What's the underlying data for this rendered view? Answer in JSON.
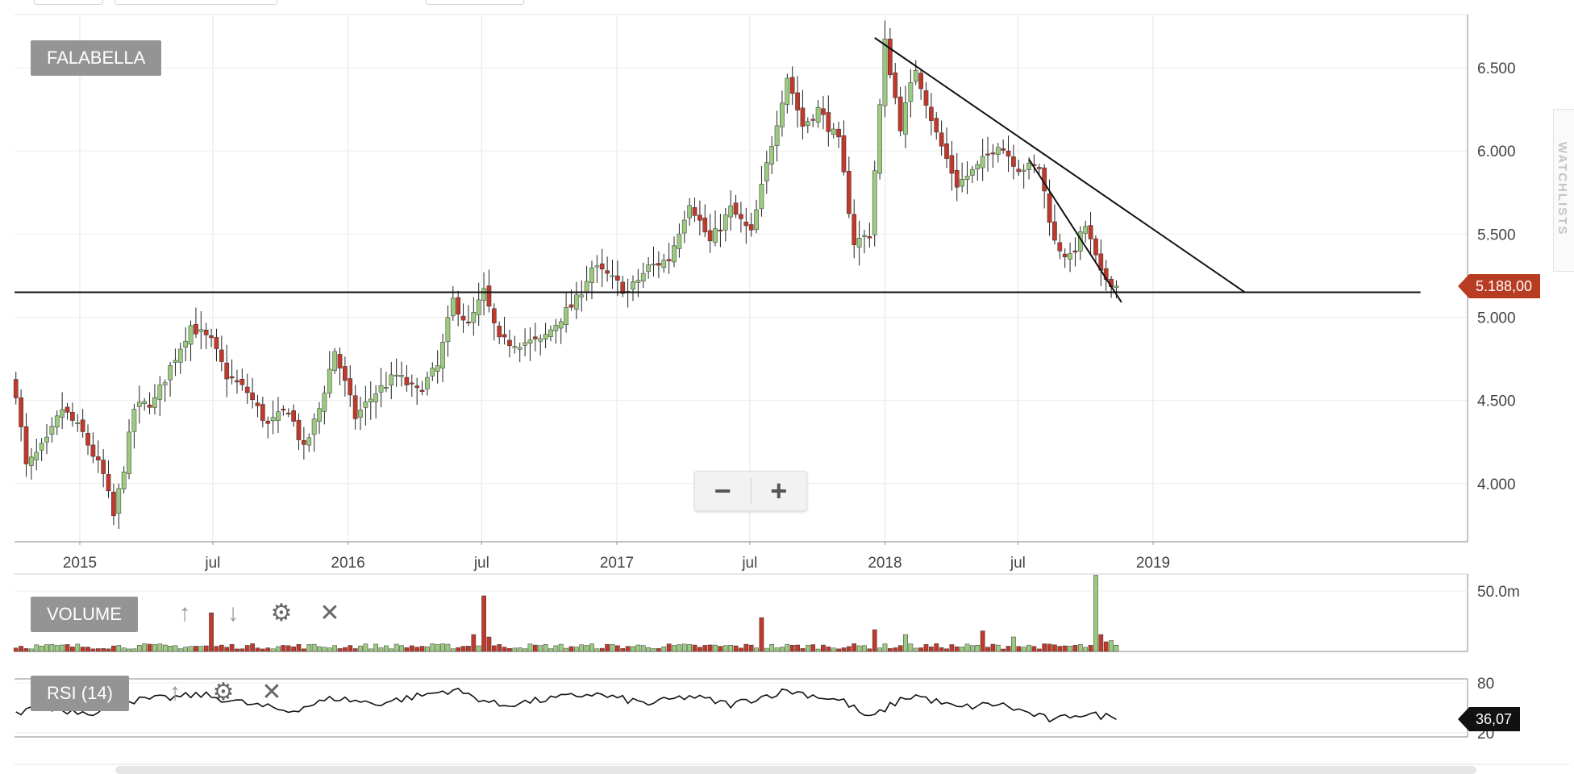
{
  "symbol": "FALABELLA",
  "last_price_label": "5.188,00",
  "rsi_value_label": "36,07",
  "colors": {
    "up": "#9bcb7f",
    "down": "#c0392b",
    "price_tag": "#b83c22",
    "rsi_tag": "#111111",
    "label_bg": "#949494"
  },
  "panels": {
    "volume": {
      "label": "VOLUME",
      "tools": [
        "arrow-up-icon",
        "arrow-down-icon",
        "gear-icon",
        "close-icon"
      ]
    },
    "rsi": {
      "label": "RSI (14)",
      "tools": [
        "arrow-up-icon",
        "gear-icon",
        "close-icon"
      ]
    }
  },
  "side_tab_label": "WATCHLISTS",
  "zoom": {
    "minus_icon": "minus-icon",
    "plus_icon": "plus-icon"
  },
  "chart_data": [
    {
      "type": "candlestick",
      "title": "FALABELLA",
      "x_tick_labels": [
        "2015",
        "jul",
        "2016",
        "jul",
        "2017",
        "jul",
        "2018",
        "jul",
        "2019"
      ],
      "x_tick_dates": [
        "2015-01-01",
        "2015-07-01",
        "2016-01-01",
        "2016-07-01",
        "2017-01-01",
        "2017-07-01",
        "2018-01-01",
        "2018-07-01",
        "2019-01-01"
      ],
      "y_tick_labels": [
        "4.000",
        "4.500",
        "5.000",
        "5.500",
        "6.000",
        "6.500"
      ],
      "y_ticks": [
        4000,
        4500,
        5000,
        5500,
        6000,
        6500
      ],
      "ylim": [
        3650,
        6820
      ],
      "grid": true,
      "close_anchors": [
        {
          "date": "2014-10-06",
          "close": 4550
        },
        {
          "date": "2014-10-20",
          "close": 4100
        },
        {
          "date": "2014-11-17",
          "close": 4250
        },
        {
          "date": "2014-12-08",
          "close": 4450
        },
        {
          "date": "2015-01-05",
          "close": 4300
        },
        {
          "date": "2015-02-02",
          "close": 4050
        },
        {
          "date": "2015-02-16",
          "close": 3800
        },
        {
          "date": "2015-03-02",
          "close": 4100
        },
        {
          "date": "2015-03-16",
          "close": 4450
        },
        {
          "date": "2015-04-13",
          "close": 4500
        },
        {
          "date": "2015-05-04",
          "close": 4700
        },
        {
          "date": "2015-06-01",
          "close": 4950
        },
        {
          "date": "2015-06-29",
          "close": 4850
        },
        {
          "date": "2015-07-20",
          "close": 4650
        },
        {
          "date": "2015-08-17",
          "close": 4550
        },
        {
          "date": "2015-09-14",
          "close": 4350
        },
        {
          "date": "2015-10-12",
          "close": 4450
        },
        {
          "date": "2015-11-02",
          "close": 4200
        },
        {
          "date": "2015-11-23",
          "close": 4450
        },
        {
          "date": "2015-12-14",
          "close": 4800
        },
        {
          "date": "2016-01-11",
          "close": 4400
        },
        {
          "date": "2016-02-08",
          "close": 4550
        },
        {
          "date": "2016-03-07",
          "close": 4650
        },
        {
          "date": "2016-04-04",
          "close": 4550
        },
        {
          "date": "2016-05-02",
          "close": 4700
        },
        {
          "date": "2016-05-23",
          "close": 5100
        },
        {
          "date": "2016-06-13",
          "close": 4950
        },
        {
          "date": "2016-07-04",
          "close": 5150
        },
        {
          "date": "2016-07-25",
          "close": 4850
        },
        {
          "date": "2016-08-22",
          "close": 4850
        },
        {
          "date": "2016-09-19",
          "close": 4850
        },
        {
          "date": "2016-10-17",
          "close": 5000
        },
        {
          "date": "2016-11-07",
          "close": 5100
        },
        {
          "date": "2016-11-28",
          "close": 5300
        },
        {
          "date": "2016-12-19",
          "close": 5250
        },
        {
          "date": "2017-01-16",
          "close": 5150
        },
        {
          "date": "2017-02-13",
          "close": 5300
        },
        {
          "date": "2017-03-13",
          "close": 5350
        },
        {
          "date": "2017-04-10",
          "close": 5700
        },
        {
          "date": "2017-05-08",
          "close": 5450
        },
        {
          "date": "2017-06-05",
          "close": 5650
        },
        {
          "date": "2017-07-03",
          "close": 5500
        },
        {
          "date": "2017-07-31",
          "close": 6050
        },
        {
          "date": "2017-08-21",
          "close": 6450
        },
        {
          "date": "2017-09-11",
          "close": 6150
        },
        {
          "date": "2017-10-02",
          "close": 6250
        },
        {
          "date": "2017-10-30",
          "close": 6050
        },
        {
          "date": "2017-11-20",
          "close": 5450
        },
        {
          "date": "2017-12-11",
          "close": 5500
        },
        {
          "date": "2018-01-01",
          "close": 6650
        },
        {
          "date": "2018-01-22",
          "close": 6150
        },
        {
          "date": "2018-02-12",
          "close": 6500
        },
        {
          "date": "2018-03-12",
          "close": 6100
        },
        {
          "date": "2018-04-09",
          "close": 5800
        },
        {
          "date": "2018-05-07",
          "close": 5900
        },
        {
          "date": "2018-06-04",
          "close": 6050
        },
        {
          "date": "2018-07-02",
          "close": 5900
        },
        {
          "date": "2018-07-30",
          "close": 5900
        },
        {
          "date": "2018-08-20",
          "close": 5450
        },
        {
          "date": "2018-09-10",
          "close": 5350
        },
        {
          "date": "2018-10-01",
          "close": 5550
        },
        {
          "date": "2018-10-22",
          "close": 5250
        },
        {
          "date": "2018-11-12",
          "close": 5200
        }
      ],
      "last_price": 5188,
      "drawn_lines": [
        {
          "name": "support-line",
          "from": {
            "date": "2014-09-29",
            "price": 5150
          },
          "to": {
            "date": "2019-12-31",
            "price": 5150
          }
        },
        {
          "name": "trend-line-outer",
          "from": {
            "date": "2017-12-18",
            "price": 6680
          },
          "to": {
            "date": "2019-05-06",
            "price": 5150
          }
        },
        {
          "name": "trend-line-inner",
          "from": {
            "date": "2018-07-16",
            "price": 5950
          },
          "to": {
            "date": "2018-11-19",
            "price": 5090
          }
        }
      ]
    },
    {
      "type": "bar",
      "title": "VOLUME",
      "y_tick_labels": [
        "50.0m"
      ],
      "y_ticks": [
        50
      ],
      "unit": "m",
      "ylim": [
        0,
        64
      ],
      "baseline": 2,
      "spikes": [
        {
          "date": "2015-06-29",
          "value": 32,
          "dir": "down"
        },
        {
          "date": "2016-06-20",
          "value": 14,
          "dir": "down"
        },
        {
          "date": "2016-07-04",
          "value": 46,
          "dir": "down"
        },
        {
          "date": "2016-07-11",
          "value": 12,
          "dir": "down"
        },
        {
          "date": "2017-07-17",
          "value": 28,
          "dir": "down"
        },
        {
          "date": "2017-12-18",
          "value": 18,
          "dir": "down"
        },
        {
          "date": "2018-01-29",
          "value": 14,
          "dir": "up"
        },
        {
          "date": "2018-05-14",
          "value": 17,
          "dir": "down"
        },
        {
          "date": "2018-06-25",
          "value": 12,
          "dir": "up"
        },
        {
          "date": "2018-10-15",
          "value": 63,
          "dir": "up"
        },
        {
          "date": "2018-10-22",
          "value": 14,
          "dir": "down"
        },
        {
          "date": "2018-10-29",
          "value": 8,
          "dir": "down"
        },
        {
          "date": "2018-11-05",
          "value": 9,
          "dir": "up"
        }
      ]
    },
    {
      "type": "line",
      "title": "RSI (14)",
      "y_tick_labels": [
        "80",
        "20"
      ],
      "y_ticks": [
        80,
        20
      ],
      "ylim": [
        15,
        85
      ],
      "last_value": 36.07,
      "anchors": [
        {
          "date": "2014-10-06",
          "value": 42
        },
        {
          "date": "2014-10-27",
          "value": 52
        },
        {
          "date": "2014-11-24",
          "value": 48
        },
        {
          "date": "2015-01-19",
          "value": 45
        },
        {
          "date": "2015-03-02",
          "value": 58
        },
        {
          "date": "2015-05-04",
          "value": 62
        },
        {
          "date": "2015-06-15",
          "value": 66
        },
        {
          "date": "2015-08-17",
          "value": 55
        },
        {
          "date": "2015-10-12",
          "value": 46
        },
        {
          "date": "2015-12-14",
          "value": 62
        },
        {
          "date": "2016-02-08",
          "value": 55
        },
        {
          "date": "2016-05-23",
          "value": 72
        },
        {
          "date": "2016-07-25",
          "value": 53
        },
        {
          "date": "2016-11-28",
          "value": 67
        },
        {
          "date": "2017-02-13",
          "value": 55
        },
        {
          "date": "2017-04-10",
          "value": 64
        },
        {
          "date": "2017-06-05",
          "value": 54
        },
        {
          "date": "2017-08-21",
          "value": 71
        },
        {
          "date": "2017-11-06",
          "value": 58
        },
        {
          "date": "2017-12-11",
          "value": 37
        },
        {
          "date": "2018-01-22",
          "value": 60
        },
        {
          "date": "2018-02-12",
          "value": 65
        },
        {
          "date": "2018-04-09",
          "value": 50
        },
        {
          "date": "2018-06-04",
          "value": 55
        },
        {
          "date": "2018-08-20",
          "value": 34
        },
        {
          "date": "2018-09-17",
          "value": 43
        },
        {
          "date": "2018-11-12",
          "value": 39
        }
      ]
    }
  ]
}
